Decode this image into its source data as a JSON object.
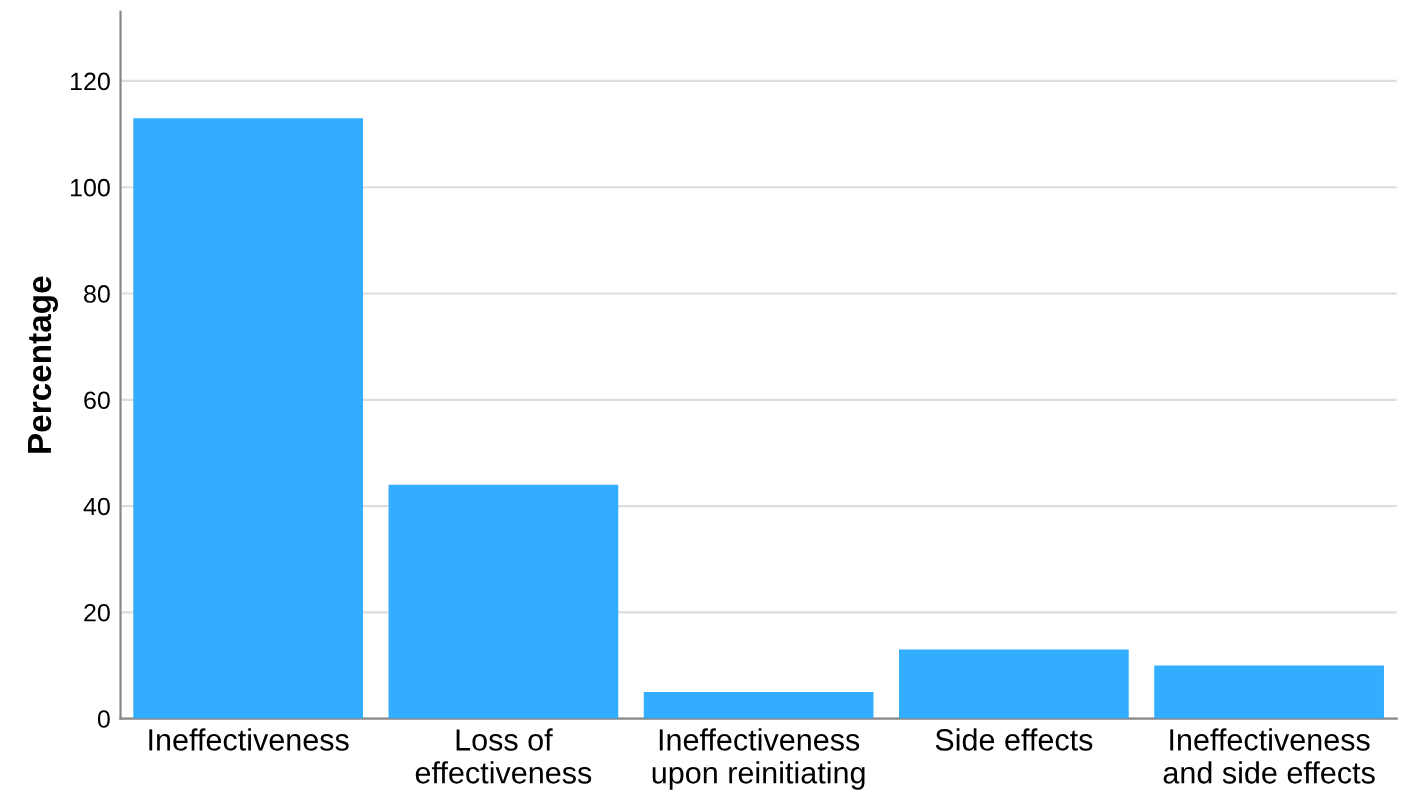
{
  "chart_data": {
    "type": "bar",
    "ylabel": "Percentage",
    "categories": [
      "Ineffectiveness",
      "Loss of\neffectiveness",
      "Ineffectiveness\nupon reinitiating",
      "Side effects",
      "Ineffectiveness\nand side effects"
    ],
    "values": [
      113,
      44,
      5,
      13,
      10
    ],
    "color": "#33adff",
    "ylim": [
      0,
      133
    ],
    "yticks": [
      0,
      20,
      40,
      60,
      80,
      100,
      120
    ],
    "grid": "y",
    "legend": false
  }
}
